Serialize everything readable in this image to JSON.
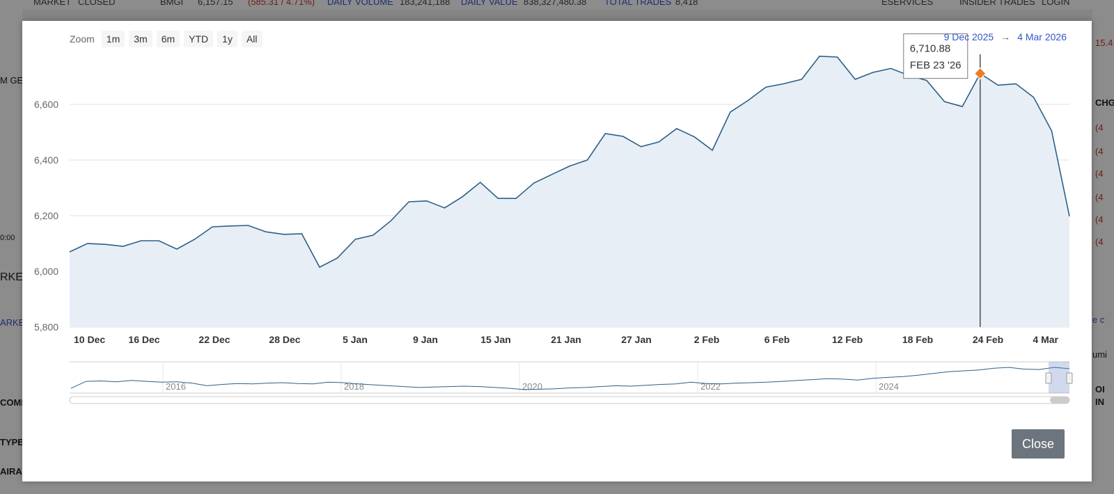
{
  "background": {
    "strip": {
      "market_status": "MARKET",
      "market_state": "CLOSED",
      "index_name": "BMGI",
      "index_value": "6,157.15",
      "index_change": "(585.31 / 4.71%)",
      "daily_volume_label": "DAILY VOLUME",
      "daily_volume": "183,241,188",
      "daily_value_label": "DAILY VALUE",
      "daily_value": "838,327,480.38",
      "total_trades_label": "TOTAL TRADES",
      "total_trades": "8,418",
      "eservices": "ESERVICES",
      "insider_trades": "INSIDER TRADES",
      "login": "LOGIN"
    },
    "left_fragments": [
      "M GEN",
      "0:00",
      "RKET",
      "ARKE",
      "COMP",
      "TYPE",
      "AIRARABIA"
    ],
    "right_fragments": [
      "15.4",
      "CHG",
      "(4",
      "(4",
      "(4",
      "(4",
      "(4",
      "(4",
      "e c",
      "umi",
      "OI",
      "IN"
    ]
  },
  "modal": {
    "zoom": {
      "label": "Zoom",
      "buttons": [
        "1m",
        "3m",
        "6m",
        "YTD",
        "1y",
        "All"
      ]
    },
    "range": {
      "from": "9 Dec 2025",
      "arrow": "→",
      "to": "4 Mar 2026"
    },
    "tooltip": {
      "value": "6,710.88",
      "date": "FEB 23 '26"
    },
    "close_label": "Close"
  },
  "chart_data": {
    "type": "area",
    "y_ticks": [
      "5,800",
      "6,000",
      "6,200",
      "6,400",
      "6,600"
    ],
    "x_ticks": [
      "10 Dec",
      "16 Dec",
      "22 Dec",
      "28 Dec",
      "5 Jan",
      "9 Jan",
      "15 Jan",
      "21 Jan",
      "27 Jan",
      "2 Feb",
      "6 Feb",
      "12 Feb",
      "18 Feb",
      "24 Feb",
      "4 Mar"
    ],
    "ylim": [
      5800,
      6800
    ],
    "grid": true,
    "series": [
      {
        "values": [
          6070,
          6100,
          6097,
          6090,
          6110,
          6110,
          6080,
          6115,
          6160,
          6163,
          6165,
          6142,
          6133,
          6135,
          6015,
          6048,
          6115,
          6130,
          6182,
          6250,
          6253,
          6228,
          6268,
          6320,
          6262,
          6262,
          6317,
          6348,
          6378,
          6400,
          6495,
          6485,
          6448,
          6465,
          6513,
          6483,
          6435,
          6572,
          6614,
          6662,
          6674,
          6690,
          6773,
          6770,
          6690,
          6715,
          6729,
          6704,
          6686,
          6610,
          6592,
          6710.88,
          6669,
          6674,
          6625,
          6505,
          6198
        ]
      }
    ],
    "highlight": {
      "index": 51,
      "value": 6710.88,
      "date": "FEB 23 '26"
    },
    "navigator": {
      "labels": [
        "2016",
        "2018",
        "2020",
        "2022",
        "2024"
      ],
      "values": [
        4120,
        4200,
        4205,
        4195,
        4210,
        4200,
        4190,
        4195,
        4180,
        4150,
        4165,
        4175,
        4170,
        4180,
        4185,
        4175,
        4170,
        4190,
        4185,
        4170,
        4160,
        4150,
        4140,
        4130,
        4135,
        4140,
        4145,
        4140,
        4130,
        4120,
        4105,
        4110,
        4115,
        4125,
        4130,
        4140,
        4150,
        4145,
        4155,
        4165,
        4170,
        4190,
        4175,
        4170,
        4180,
        4185,
        4190,
        4200,
        4210,
        4220,
        4230,
        4225,
        4215,
        4235,
        4245,
        4255,
        4270,
        4290,
        4310,
        4320,
        4330,
        4350,
        4360,
        4340,
        4335,
        4360,
        4345
      ]
    }
  }
}
